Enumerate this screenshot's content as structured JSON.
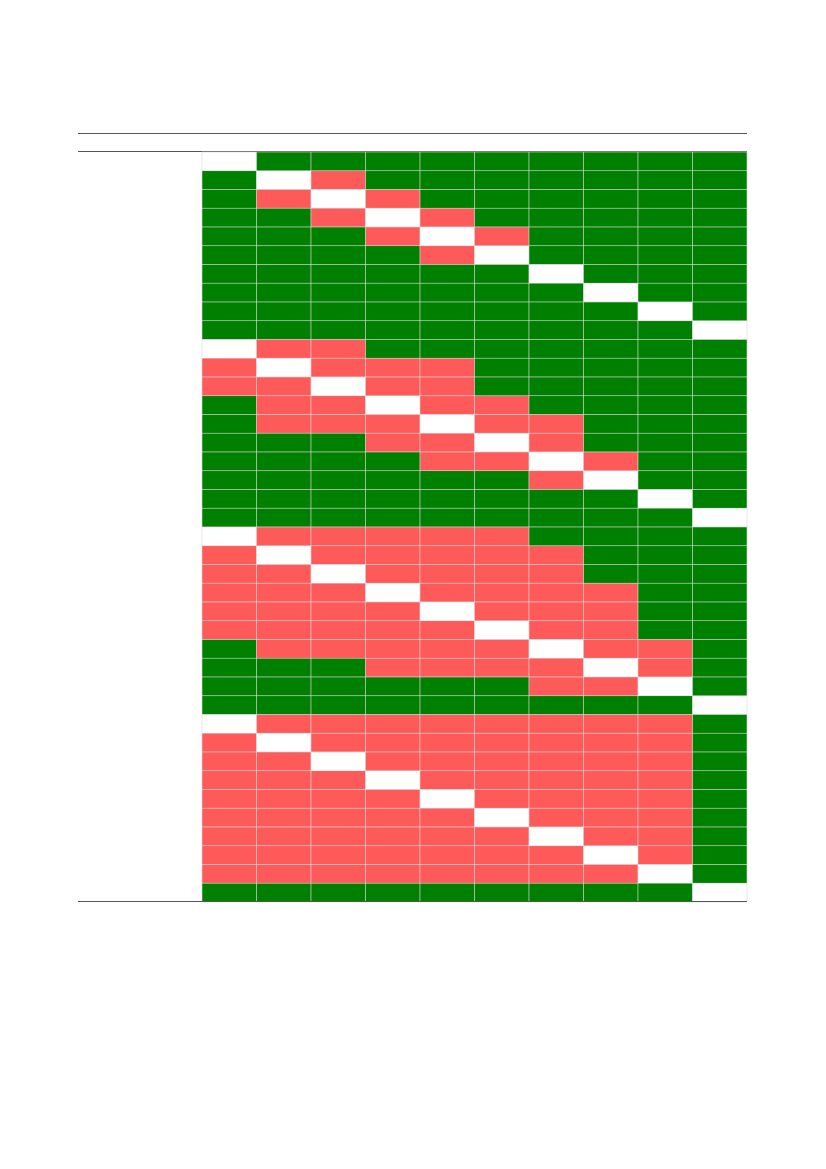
{
  "colors": {
    "G": "#008000",
    "R": "#ff5a5a",
    "W": "#ffffff"
  },
  "table": {
    "rows": [
      [
        "W",
        "G",
        "G",
        "G",
        "G",
        "G",
        "G",
        "G",
        "G",
        "G"
      ],
      [
        "G",
        "W",
        "R",
        "G",
        "G",
        "G",
        "G",
        "G",
        "G",
        "G"
      ],
      [
        "G",
        "R",
        "W",
        "R",
        "G",
        "G",
        "G",
        "G",
        "G",
        "G"
      ],
      [
        "G",
        "G",
        "R",
        "W",
        "R",
        "G",
        "G",
        "G",
        "G",
        "G"
      ],
      [
        "G",
        "G",
        "G",
        "R",
        "W",
        "R",
        "G",
        "G",
        "G",
        "G"
      ],
      [
        "G",
        "G",
        "G",
        "G",
        "R",
        "W",
        "G",
        "G",
        "G",
        "G"
      ],
      [
        "G",
        "G",
        "G",
        "G",
        "G",
        "G",
        "W",
        "G",
        "G",
        "G"
      ],
      [
        "G",
        "G",
        "G",
        "G",
        "G",
        "G",
        "G",
        "W",
        "G",
        "G"
      ],
      [
        "G",
        "G",
        "G",
        "G",
        "G",
        "G",
        "G",
        "G",
        "W",
        "G"
      ],
      [
        "G",
        "G",
        "G",
        "G",
        "G",
        "G",
        "G",
        "G",
        "G",
        "W"
      ],
      [
        "W",
        "R",
        "R",
        "G",
        "G",
        "G",
        "G",
        "G",
        "G",
        "G"
      ],
      [
        "R",
        "W",
        "R",
        "R",
        "R",
        "G",
        "G",
        "G",
        "G",
        "G"
      ],
      [
        "R",
        "R",
        "W",
        "R",
        "R",
        "G",
        "G",
        "G",
        "G",
        "G"
      ],
      [
        "G",
        "R",
        "R",
        "W",
        "R",
        "R",
        "G",
        "G",
        "G",
        "G"
      ],
      [
        "G",
        "R",
        "R",
        "R",
        "W",
        "R",
        "R",
        "G",
        "G",
        "G"
      ],
      [
        "G",
        "G",
        "G",
        "R",
        "R",
        "W",
        "R",
        "G",
        "G",
        "G"
      ],
      [
        "G",
        "G",
        "G",
        "G",
        "R",
        "R",
        "W",
        "R",
        "G",
        "G"
      ],
      [
        "G",
        "G",
        "G",
        "G",
        "G",
        "G",
        "R",
        "W",
        "G",
        "G"
      ],
      [
        "G",
        "G",
        "G",
        "G",
        "G",
        "G",
        "G",
        "G",
        "W",
        "G"
      ],
      [
        "G",
        "G",
        "G",
        "G",
        "G",
        "G",
        "G",
        "G",
        "G",
        "W"
      ],
      [
        "W",
        "R",
        "R",
        "R",
        "R",
        "R",
        "G",
        "G",
        "G",
        "G"
      ],
      [
        "R",
        "W",
        "R",
        "R",
        "R",
        "R",
        "R",
        "G",
        "G",
        "G"
      ],
      [
        "R",
        "R",
        "W",
        "R",
        "R",
        "R",
        "R",
        "G",
        "G",
        "G"
      ],
      [
        "R",
        "R",
        "R",
        "W",
        "R",
        "R",
        "R",
        "R",
        "G",
        "G"
      ],
      [
        "R",
        "R",
        "R",
        "R",
        "W",
        "R",
        "R",
        "R",
        "G",
        "G"
      ],
      [
        "R",
        "R",
        "R",
        "R",
        "R",
        "W",
        "R",
        "R",
        "G",
        "G"
      ],
      [
        "G",
        "R",
        "R",
        "R",
        "R",
        "R",
        "W",
        "R",
        "R",
        "G"
      ],
      [
        "G",
        "G",
        "G",
        "R",
        "R",
        "R",
        "R",
        "W",
        "R",
        "G"
      ],
      [
        "G",
        "G",
        "G",
        "G",
        "G",
        "G",
        "R",
        "R",
        "W",
        "G"
      ],
      [
        "G",
        "G",
        "G",
        "G",
        "G",
        "G",
        "G",
        "G",
        "G",
        "W"
      ],
      [
        "W",
        "R",
        "R",
        "R",
        "R",
        "R",
        "R",
        "R",
        "R",
        "G"
      ],
      [
        "R",
        "W",
        "R",
        "R",
        "R",
        "R",
        "R",
        "R",
        "R",
        "G"
      ],
      [
        "R",
        "R",
        "W",
        "R",
        "R",
        "R",
        "R",
        "R",
        "R",
        "G"
      ],
      [
        "R",
        "R",
        "R",
        "W",
        "R",
        "R",
        "R",
        "R",
        "R",
        "G"
      ],
      [
        "R",
        "R",
        "R",
        "R",
        "W",
        "R",
        "R",
        "R",
        "R",
        "G"
      ],
      [
        "R",
        "R",
        "R",
        "R",
        "R",
        "W",
        "R",
        "R",
        "R",
        "G"
      ],
      [
        "R",
        "R",
        "R",
        "R",
        "R",
        "R",
        "W",
        "R",
        "R",
        "G"
      ],
      [
        "R",
        "R",
        "R",
        "R",
        "R",
        "R",
        "R",
        "W",
        "R",
        "G"
      ],
      [
        "R",
        "R",
        "R",
        "R",
        "R",
        "R",
        "R",
        "R",
        "W",
        "G"
      ],
      [
        "G",
        "G",
        "G",
        "G",
        "G",
        "G",
        "G",
        "G",
        "G",
        "W"
      ]
    ]
  }
}
